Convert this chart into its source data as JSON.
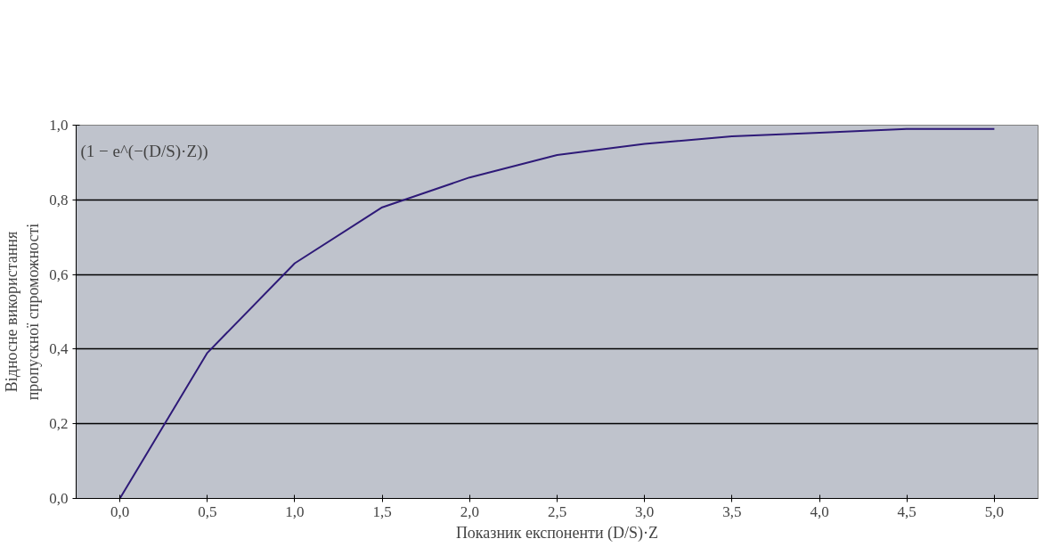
{
  "chart_data": {
    "type": "line",
    "xlabel": "Показник експоненти (D/S)·Z",
    "ylabel": "Відносне використання\nпропускної спроможності",
    "annotations": [
      "(1 − e^(−(D/S)·Z))"
    ],
    "categories": [
      "0,0",
      "0,5",
      "1,0",
      "1,5",
      "2,0",
      "2,5",
      "3,0",
      "3,5",
      "4,0",
      "4,5",
      "5,0"
    ],
    "series": [
      {
        "color": "#2e1a78",
        "values": [
          0,
          0.39,
          0.63,
          0.78,
          0.86,
          0.92,
          0.95,
          0.97,
          0.98,
          0.99,
          0.99
        ]
      }
    ],
    "ylim": [
      0,
      1
    ],
    "yticks": [
      {
        "value": 0,
        "label": "0,0"
      },
      {
        "value": 0.2,
        "label": "0,2"
      },
      {
        "value": 0.4,
        "label": "0,4"
      },
      {
        "value": 0.6,
        "label": "0,6"
      },
      {
        "value": 0.8,
        "label": "0,8"
      },
      {
        "value": 1,
        "label": "1,0"
      }
    ],
    "grid": "y",
    "marker": "none",
    "line_style": "solid"
  }
}
